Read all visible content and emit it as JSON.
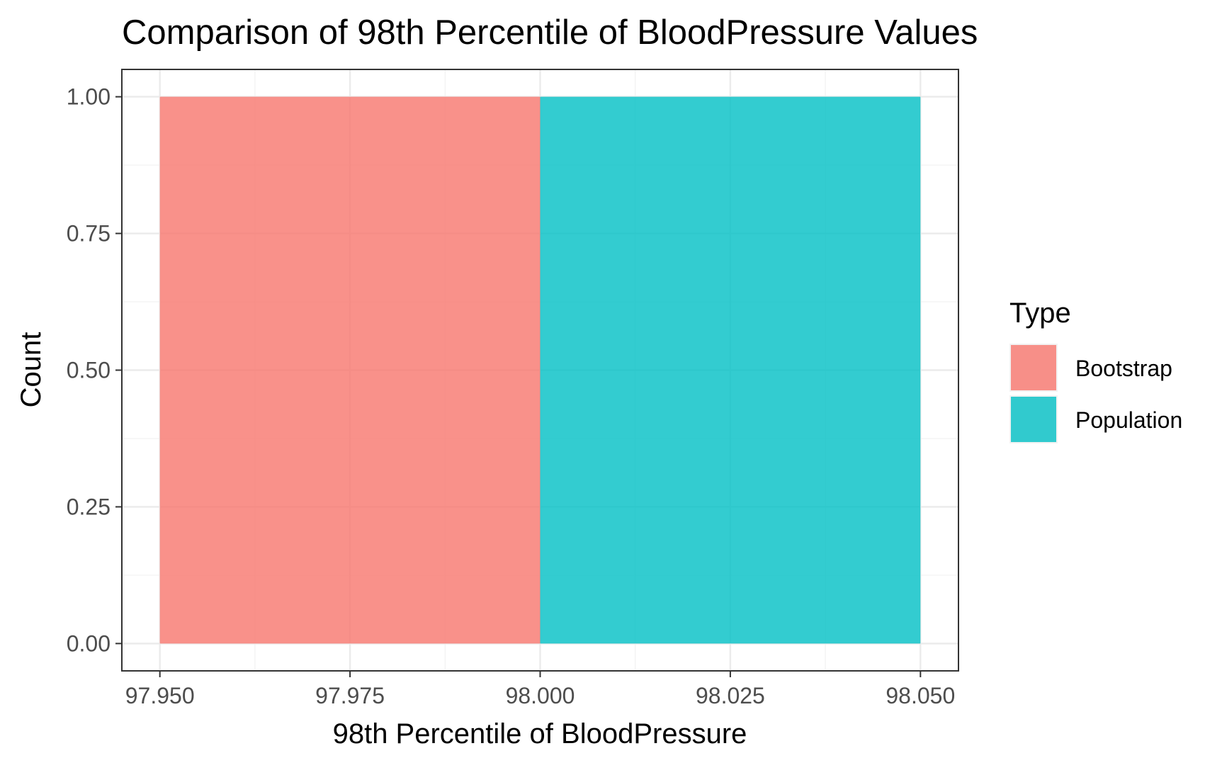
{
  "chart_data": {
    "type": "bar",
    "title": "Comparison of 98th Percentile of BloodPressure Values",
    "xlabel": "98th Percentile of BloodPressure",
    "ylabel": "Count",
    "xlim": [
      97.945,
      98.055
    ],
    "ylim": [
      -0.05,
      1.05
    ],
    "x_ticks": [
      97.95,
      97.975,
      98.0,
      98.025,
      98.05
    ],
    "x_tick_labels": [
      "97.950",
      "97.975",
      "98.000",
      "98.025",
      "98.050"
    ],
    "y_ticks": [
      0,
      0.25,
      0.5,
      0.75,
      1.0
    ],
    "y_tick_labels": [
      "0.00",
      "0.25",
      "0.50",
      "0.75",
      "1.00"
    ],
    "grid": true,
    "legend": {
      "title": "Type",
      "position": "right"
    },
    "series": [
      {
        "name": "Bootstrap",
        "color": "#F8766D",
        "bins": [
          {
            "x0": 97.95,
            "x1": 98.0,
            "count": 1
          }
        ]
      },
      {
        "name": "Population",
        "color": "#00BFC4",
        "bins": [
          {
            "x0": 98.0,
            "x1": 98.05,
            "count": 1
          }
        ]
      }
    ]
  }
}
